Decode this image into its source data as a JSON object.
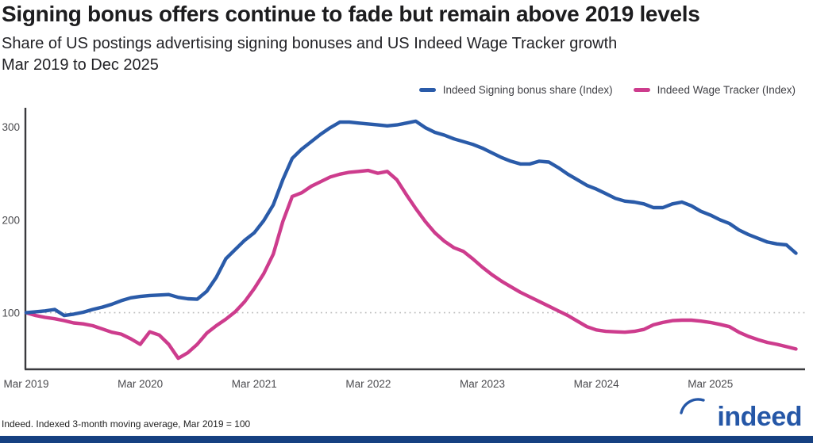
{
  "page": {
    "title": "Signing bonus offers continue to fade but remain above 2019 levels",
    "subtitle_line1": "Share of US postings advertising signing bonuses and US Indeed Wage Tracker growth",
    "subtitle_line2": "Mar 2019 to Dec 2025",
    "source_note": "Indeed. Indexed 3-month moving average, Mar 2019 = 100",
    "logo_text": "indeed"
  },
  "colors": {
    "signing_bonus_line": "#2a5ba9",
    "wage_tracker_line": "#cd3c8d",
    "title_text": "#1d1d1f",
    "axis_text": "#4a4a4e",
    "axis_spine": "#3a3a3e",
    "gridline_dotted": "#bdbdbd",
    "logo_blue": "#2557a7",
    "footer_bar": "#164081"
  },
  "chart_data": {
    "type": "line",
    "title": "Signing bonus offers continue to fade but remain above 2019 levels",
    "xlabel": "",
    "ylabel": "",
    "frequency": "monthly",
    "x_start": "Mar 2019",
    "x_end": "Dec 2025",
    "index_base": "Mar 2019 = 100",
    "ylim": [
      40,
      317
    ],
    "y_ticks": [
      100,
      200,
      300
    ],
    "x_ticks": [
      {
        "label": "Mar 2019",
        "month_index": 0
      },
      {
        "label": "Mar 2020",
        "month_index": 12
      },
      {
        "label": "Mar 2021",
        "month_index": 24
      },
      {
        "label": "Mar 2022",
        "month_index": 36
      },
      {
        "label": "Mar 2023",
        "month_index": 48
      },
      {
        "label": "Mar 2024",
        "month_index": 60
      },
      {
        "label": "Mar 2025",
        "month_index": 72
      }
    ],
    "gridline": "dotted horizontal line at index value 100",
    "legend_position": "top-right",
    "series": [
      {
        "name": "Indeed Signing bonus share (Index)",
        "color": "#2a5ba9",
        "values": [
          100,
          101,
          102,
          103.5,
          97,
          98.5,
          100.5,
          103.5,
          106,
          109,
          113,
          116,
          117.5,
          118.5,
          119,
          119.5,
          116.5,
          115,
          114.5,
          123,
          138,
          158,
          168,
          178,
          186,
          199,
          216,
          243,
          266,
          276,
          284,
          292,
          299,
          305,
          305,
          304,
          303,
          302,
          301,
          302,
          304,
          306,
          299,
          294,
          291,
          287,
          284,
          281,
          277,
          272,
          267,
          263,
          260,
          260,
          263,
          262,
          256,
          249,
          243,
          237,
          233,
          228,
          223,
          220,
          219,
          217,
          213,
          213,
          217,
          219,
          215,
          209,
          205,
          200,
          196,
          189,
          184,
          180,
          176,
          174,
          173,
          164
        ]
      },
      {
        "name": "Indeed Wage Tracker (Index)",
        "color": "#cd3c8d",
        "values": [
          100,
          97,
          95,
          93.5,
          91.5,
          89,
          88,
          86,
          82.5,
          79,
          77,
          72,
          66,
          79.5,
          76,
          66,
          51,
          57,
          66,
          78,
          86,
          93,
          101,
          112,
          126,
          142,
          163,
          198,
          225,
          229,
          236,
          241,
          246,
          249,
          251,
          252,
          253,
          250,
          252,
          243,
          227,
          212,
          198,
          186,
          177,
          170,
          166,
          158,
          149,
          141,
          134,
          128,
          122,
          117,
          112,
          107,
          102,
          97,
          91,
          85,
          81.5,
          80,
          79.5,
          79,
          80,
          82,
          87,
          89.5,
          91.5,
          92,
          92,
          91,
          89.5,
          87.5,
          85,
          79,
          74.5,
          71,
          68,
          66,
          63.5,
          61
        ]
      }
    ]
  }
}
